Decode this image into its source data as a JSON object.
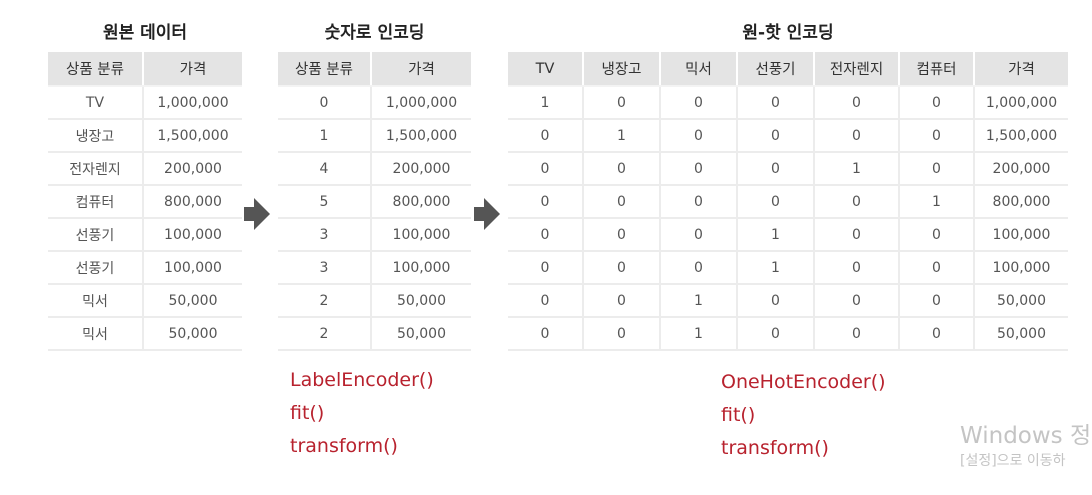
{
  "original": {
    "title": "원본 데이터",
    "headers": [
      "상품 분류",
      "가격"
    ],
    "rows": [
      [
        "TV",
        "1,000,000"
      ],
      [
        "냉장고",
        "1,500,000"
      ],
      [
        "전자렌지",
        "200,000"
      ],
      [
        "컴퓨터",
        "800,000"
      ],
      [
        "선풍기",
        "100,000"
      ],
      [
        "선풍기",
        "100,000"
      ],
      [
        "믹서",
        "50,000"
      ],
      [
        "믹서",
        "50,000"
      ]
    ]
  },
  "label": {
    "title": "숫자로 인코딩",
    "headers": [
      "상품 분류",
      "가격"
    ],
    "rows": [
      [
        "0",
        "1,000,000"
      ],
      [
        "1",
        "1,500,000"
      ],
      [
        "4",
        "200,000"
      ],
      [
        "5",
        "800,000"
      ],
      [
        "3",
        "100,000"
      ],
      [
        "3",
        "100,000"
      ],
      [
        "2",
        "50,000"
      ],
      [
        "2",
        "50,000"
      ]
    ],
    "code": [
      "LabelEncoder()",
      "fit()",
      "transform()"
    ]
  },
  "onehot": {
    "title": "원-핫 인코딩",
    "headers": [
      "TV",
      "냉장고",
      "믹서",
      "선풍기",
      "전자렌지",
      "컴퓨터",
      "가격"
    ],
    "rows": [
      [
        "1",
        "0",
        "0",
        "0",
        "0",
        "0",
        "1,000,000"
      ],
      [
        "0",
        "1",
        "0",
        "0",
        "0",
        "0",
        "1,500,000"
      ],
      [
        "0",
        "0",
        "0",
        "0",
        "1",
        "0",
        "200,000"
      ],
      [
        "0",
        "0",
        "0",
        "0",
        "0",
        "1",
        "800,000"
      ],
      [
        "0",
        "0",
        "0",
        "1",
        "0",
        "0",
        "100,000"
      ],
      [
        "0",
        "0",
        "0",
        "1",
        "0",
        "0",
        "100,000"
      ],
      [
        "0",
        "0",
        "1",
        "0",
        "0",
        "0",
        "50,000"
      ],
      [
        "0",
        "0",
        "1",
        "0",
        "0",
        "0",
        "50,000"
      ]
    ],
    "code": [
      "OneHotEncoder()",
      "fit()",
      "transform()"
    ]
  },
  "watermark": {
    "line1": "Windows 정",
    "line2": "[설정]으로 이동하"
  },
  "colors": {
    "header_bg": "#e4e4e4",
    "code_text": "#b8222e",
    "arrow": "#555555"
  }
}
